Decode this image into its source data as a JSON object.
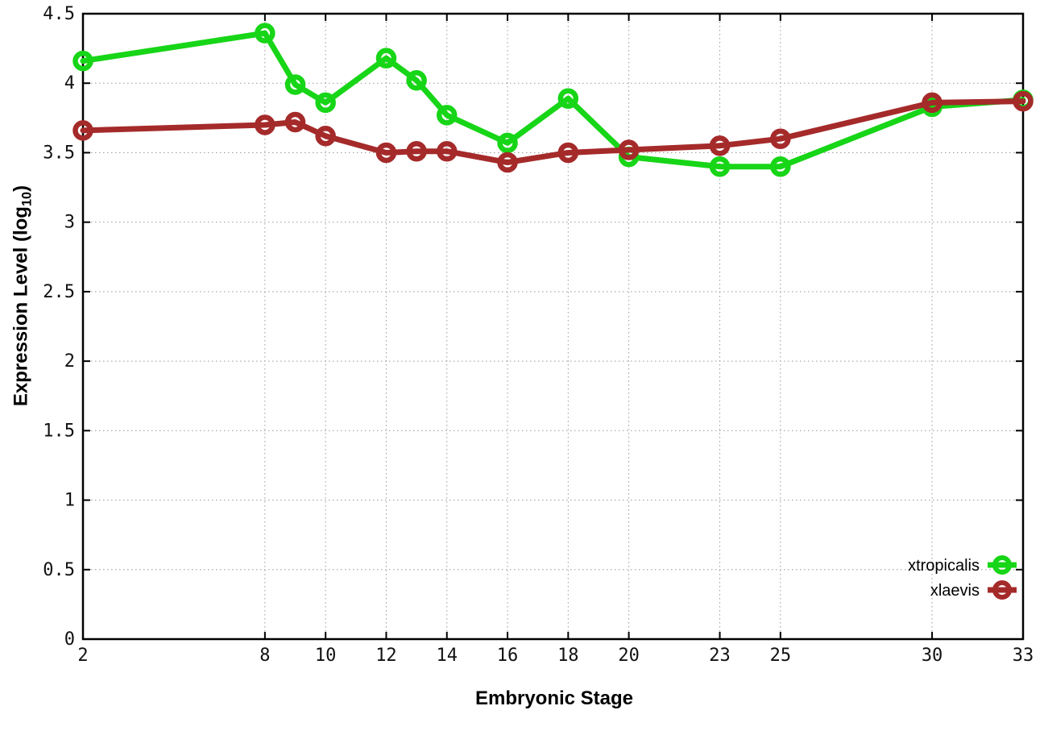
{
  "chart_data": {
    "type": "line",
    "title": "",
    "xlabel": "Embryonic Stage",
    "ylabel": "Expression Level (log10)",
    "ylabel_parts": [
      "Expression Level (log",
      "10",
      ")"
    ],
    "x": [
      2,
      8,
      9,
      10,
      12,
      13,
      14,
      16,
      18,
      20,
      23,
      25,
      30,
      33
    ],
    "series": [
      {
        "name": "xtropicalis",
        "color": "#17d517",
        "values": [
          4.16,
          4.36,
          3.99,
          3.86,
          4.18,
          4.02,
          3.77,
          3.57,
          3.89,
          3.47,
          3.4,
          3.4,
          3.83,
          3.88
        ]
      },
      {
        "name": "xlaevis",
        "color": "#a52a2a",
        "values": [
          3.66,
          3.7,
          3.72,
          3.62,
          3.5,
          3.51,
          3.51,
          3.43,
          3.5,
          3.52,
          3.55,
          3.6,
          3.86,
          3.87
        ]
      }
    ],
    "xticks": [
      {
        "value": 2,
        "label": "2"
      },
      {
        "value": 8,
        "label": "8"
      },
      {
        "value": 10,
        "label": "10"
      },
      {
        "value": 12,
        "label": "12"
      },
      {
        "value": 14,
        "label": "14"
      },
      {
        "value": 16,
        "label": "16"
      },
      {
        "value": 18,
        "label": "18"
      },
      {
        "value": 20,
        "label": "20"
      },
      {
        "value": 23,
        "label": "23"
      },
      {
        "value": 25,
        "label": "25"
      },
      {
        "value": 30,
        "label": "30"
      },
      {
        "value": 33,
        "label": "33"
      }
    ],
    "yticks": [
      {
        "value": 0,
        "label": "0"
      },
      {
        "value": 0.5,
        "label": "0.5"
      },
      {
        "value": 1,
        "label": "1"
      },
      {
        "value": 1.5,
        "label": "1.5"
      },
      {
        "value": 2,
        "label": "2"
      },
      {
        "value": 2.5,
        "label": "2.5"
      },
      {
        "value": 3,
        "label": "3"
      },
      {
        "value": 3.5,
        "label": "3.5"
      },
      {
        "value": 4,
        "label": "4"
      },
      {
        "value": 4.5,
        "label": "4.5"
      }
    ],
    "xlim": [
      2,
      33
    ],
    "ylim": [
      0,
      4.5
    ],
    "grid": true,
    "legend_position": "bottom-right",
    "colors": {
      "border": "#000000",
      "grid": "#9a9a9a",
      "background": "#ffffff",
      "tick_text": "#111111"
    }
  }
}
